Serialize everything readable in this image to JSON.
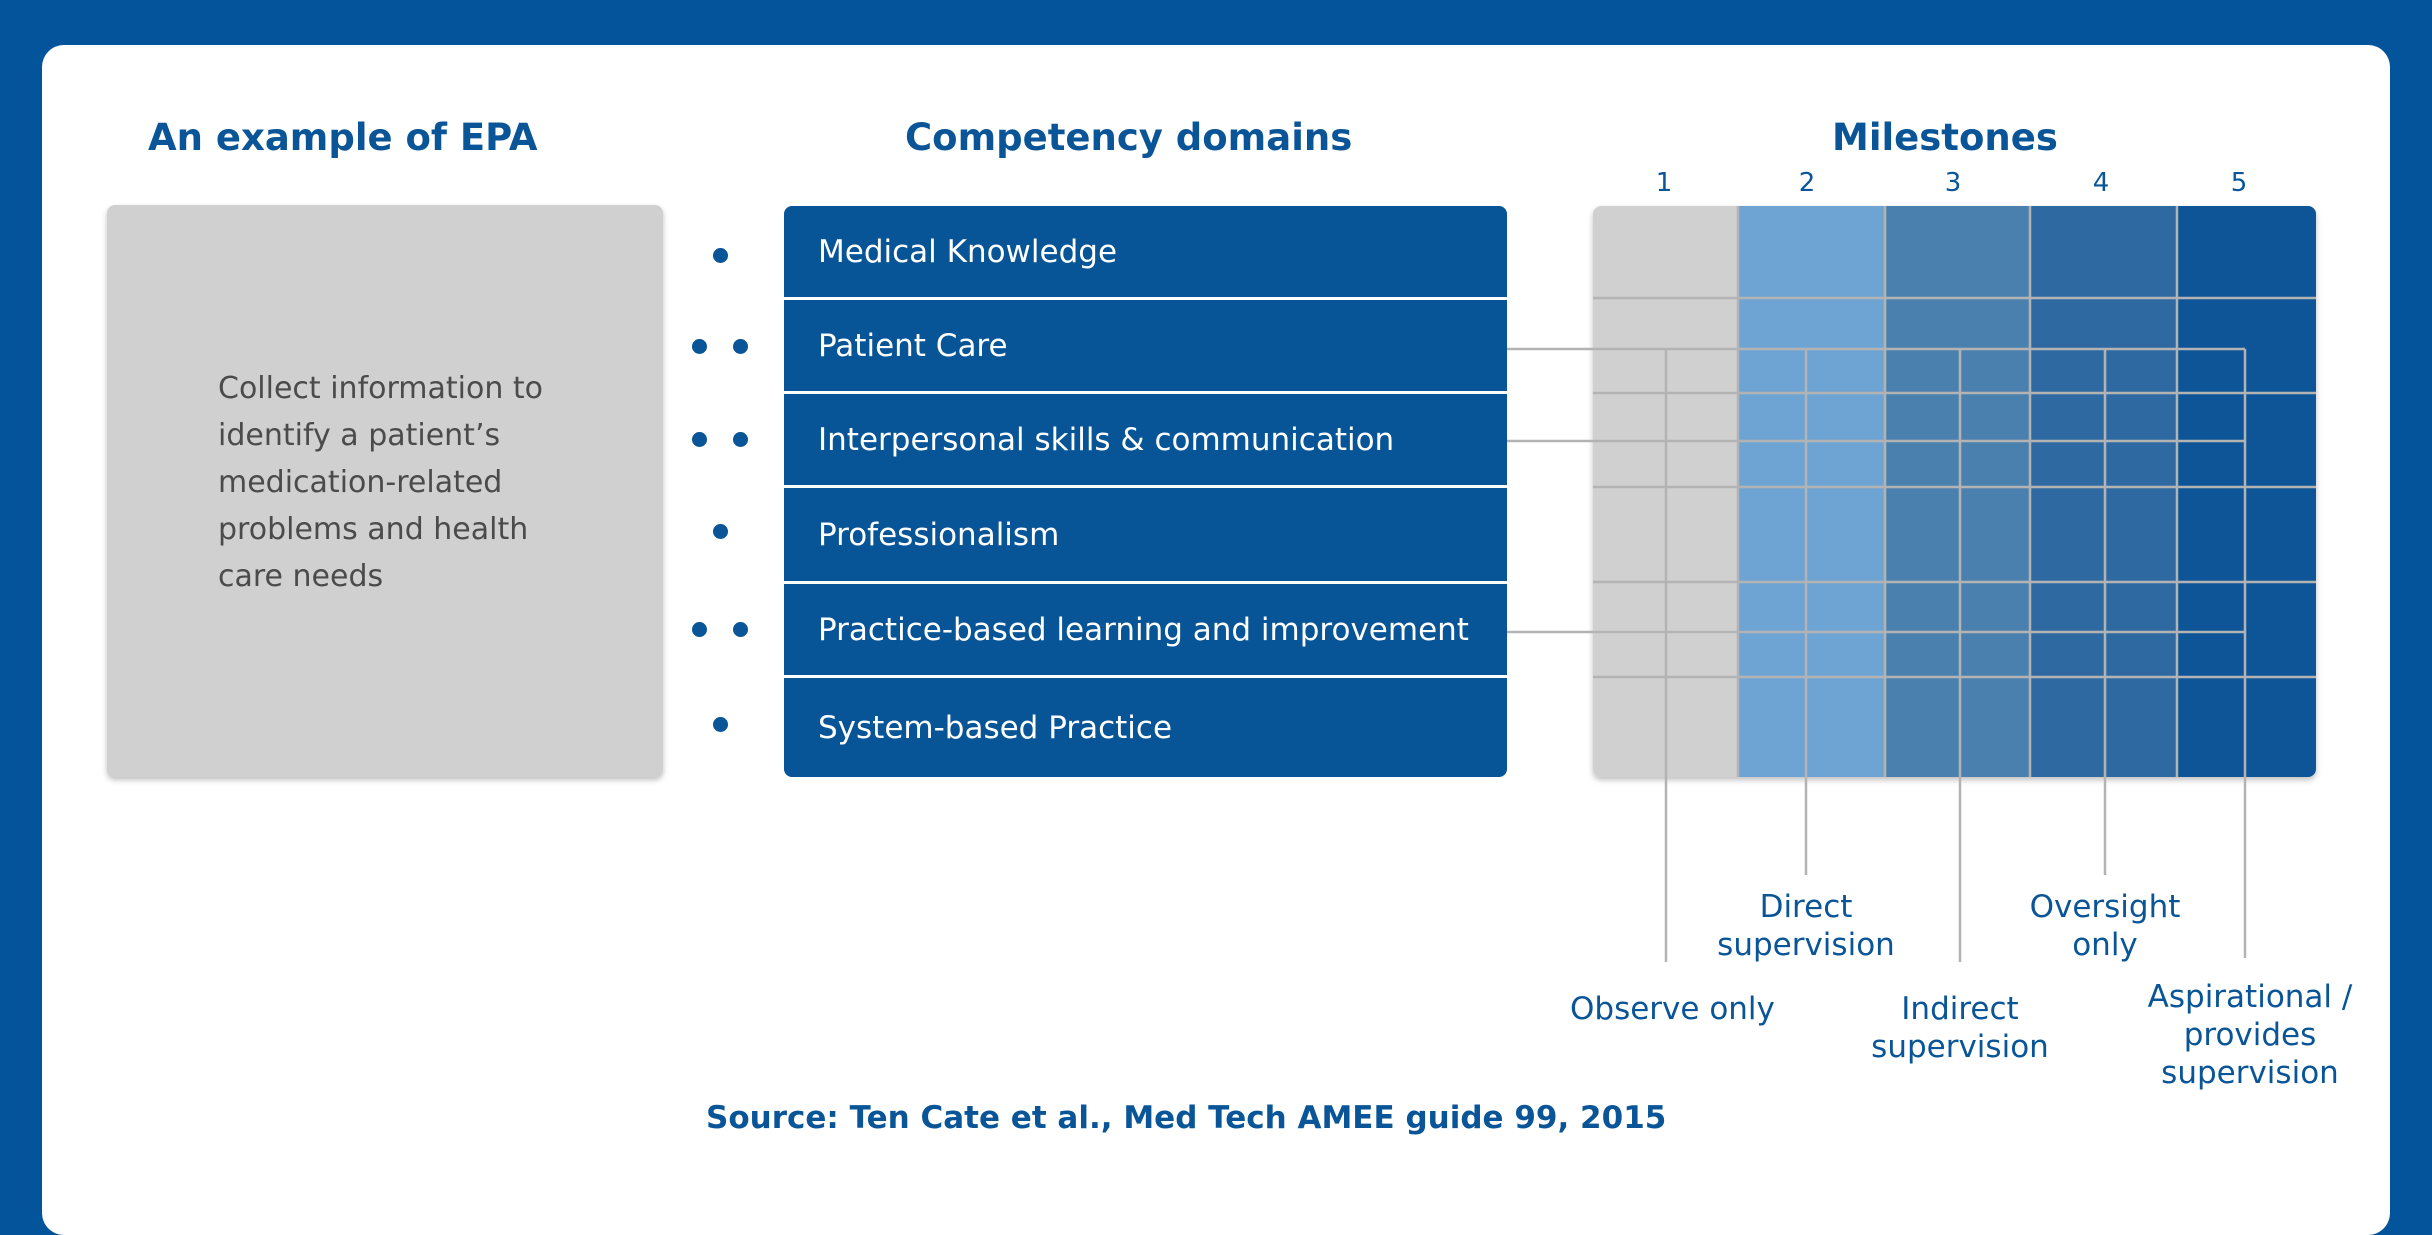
{
  "headings": {
    "epa": "An example of EPA",
    "domains": "Competency domains",
    "milestones": "Milestones"
  },
  "epa": {
    "lines": [
      "Collect information to",
      "identify a patient’s",
      "medication-related",
      "problems and health",
      "care needs"
    ]
  },
  "domains": [
    {
      "label": "Medical Knowledge",
      "dots": 1
    },
    {
      "label": "Patient Care",
      "dots": 2
    },
    {
      "label": "Interpersonal skills & communication",
      "dots": 2
    },
    {
      "label": "Professionalism",
      "dots": 1
    },
    {
      "label": "Practice-based learning and improvement",
      "dots": 2
    },
    {
      "label": "System-based Practice",
      "dots": 1
    }
  ],
  "milestones": {
    "columns": [
      "1",
      "2",
      "3",
      "4",
      "5"
    ],
    "column_colors": [
      "#d0d0d0",
      "#6ea4d4",
      "#4a80ae",
      "#2e6aa1",
      "#075496"
    ],
    "labels": {
      "observe": "Observe only",
      "direct": [
        "Direct",
        "supervision"
      ],
      "indirect": [
        "Indirect",
        "supervision"
      ],
      "oversight": [
        "Oversight",
        "only"
      ],
      "aspirational": [
        "Aspirational /",
        "provides",
        "supervision"
      ]
    }
  },
  "source": "Source: Ten Cate et al., Med Tech AMEE guide 99, 2015"
}
